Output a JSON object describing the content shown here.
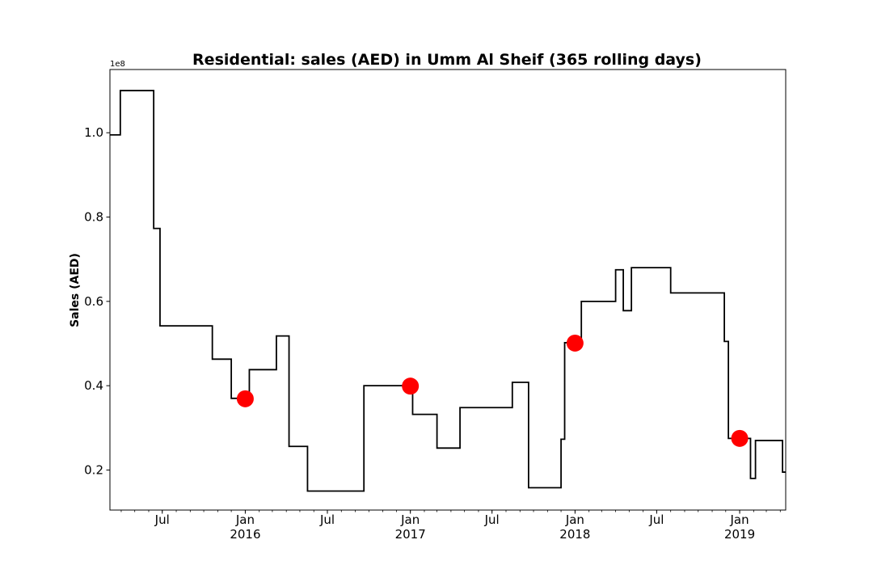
{
  "chart_data": {
    "type": "line",
    "title": "Residential: sales (AED) in Umm Al Sheif (365 rolling days)",
    "xlabel": "",
    "ylabel": "Sales (AED)",
    "y_offset_label": "1e8",
    "xlim": [
      "2015-03-07",
      "2019-04-13"
    ],
    "ylim": [
      10500000,
      115000000
    ],
    "y_ticks": [
      {
        "value": 20000000,
        "label": "0.2"
      },
      {
        "value": 40000000,
        "label": "0.4"
      },
      {
        "value": 60000000,
        "label": "0.6"
      },
      {
        "value": 80000000,
        "label": "0.8"
      },
      {
        "value": 100000000,
        "label": "1.0"
      }
    ],
    "x_major_ticks": [
      {
        "date": "2015-07-01",
        "label": "Jul",
        "year": ""
      },
      {
        "date": "2016-01-01",
        "label": "Jan",
        "year": "2016"
      },
      {
        "date": "2016-07-01",
        "label": "Jul",
        "year": ""
      },
      {
        "date": "2017-01-01",
        "label": "Jan",
        "year": "2017"
      },
      {
        "date": "2017-07-01",
        "label": "Jul",
        "year": ""
      },
      {
        "date": "2018-01-01",
        "label": "Jan",
        "year": "2018"
      },
      {
        "date": "2018-07-01",
        "label": "Jul",
        "year": ""
      },
      {
        "date": "2019-01-01",
        "label": "Jan",
        "year": "2019"
      }
    ],
    "x_minor_ticks": "monthly",
    "grid": false,
    "series": [
      {
        "color": "#000000",
        "style": "step",
        "points": [
          [
            "2015-03-07",
            99500000
          ],
          [
            "2015-03-30",
            110000000
          ],
          [
            "2015-06-12",
            77300000
          ],
          [
            "2015-06-26",
            54200000
          ],
          [
            "2015-10-20",
            46300000
          ],
          [
            "2015-12-01",
            37000000
          ],
          [
            "2016-01-10",
            43800000
          ],
          [
            "2016-03-10",
            51800000
          ],
          [
            "2016-04-07",
            25600000
          ],
          [
            "2016-05-18",
            15000000
          ],
          [
            "2016-09-20",
            40000000
          ],
          [
            "2017-01-01",
            39700000
          ],
          [
            "2017-01-06",
            33200000
          ],
          [
            "2017-03-01",
            25200000
          ],
          [
            "2017-04-21",
            34800000
          ],
          [
            "2017-08-15",
            40800000
          ],
          [
            "2017-09-20",
            15800000
          ],
          [
            "2017-12-01",
            27300000
          ],
          [
            "2017-12-09",
            50200000
          ],
          [
            "2018-01-15",
            60000000
          ],
          [
            "2018-04-01",
            67500000
          ],
          [
            "2018-04-18",
            57800000
          ],
          [
            "2018-05-06",
            68000000
          ],
          [
            "2018-08-01",
            62000000
          ],
          [
            "2018-11-28",
            50500000
          ],
          [
            "2018-12-07",
            27500000
          ],
          [
            "2019-01-25",
            18000000
          ],
          [
            "2019-02-05",
            27000000
          ],
          [
            "2019-04-06",
            19500000
          ],
          [
            "2019-04-13",
            19500000
          ]
        ]
      }
    ],
    "markers": {
      "color": "#ff0000",
      "points": [
        [
          "2016-01-01",
          36900000
        ],
        [
          "2017-01-01",
          39900000
        ],
        [
          "2018-01-01",
          50100000
        ],
        [
          "2019-01-01",
          27500000
        ]
      ]
    }
  }
}
